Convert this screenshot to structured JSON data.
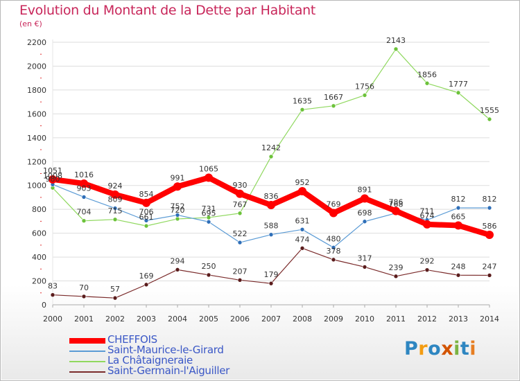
{
  "title": "Evolution du Montant de la Dette par Habitant",
  "subtitle": "(en €)",
  "chart_data": {
    "type": "line",
    "title": "Evolution du Montant de la Dette par Habitant",
    "subtitle": "(en €)",
    "xlabel": "",
    "ylabel": "",
    "categories": [
      "2000",
      "2001",
      "2002",
      "2003",
      "2004",
      "2005",
      "2006",
      "2007",
      "2008",
      "2009",
      "2010",
      "2011",
      "2012",
      "2013",
      "2014"
    ],
    "ylim": [
      0,
      2200
    ],
    "yticks": [
      0,
      200,
      400,
      600,
      800,
      1000,
      1200,
      1400,
      1600,
      1800,
      2000,
      2200
    ],
    "grid": "horizontal",
    "legend_position": "bottom-left",
    "series": [
      {
        "name": "CHEFFOIS",
        "color": "#ff0000",
        "values": [
          1051,
          1016,
          924,
          854,
          991,
          1065,
          930,
          836,
          952,
          769,
          891,
          786,
          674,
          665,
          586
        ]
      },
      {
        "name": "Saint-Maurice-le-Girard",
        "color": "#5b9bd5",
        "values": [
          1008,
          903,
          809,
          706,
          752,
          695,
          522,
          588,
          631,
          480,
          698,
          768,
          711,
          812,
          812
        ]
      },
      {
        "name": "La Châtaigneraie",
        "color": "#8fd85e",
        "values": [
          980,
          704,
          715,
          661,
          720,
          731,
          767,
          1242,
          1635,
          1667,
          1756,
          2143,
          1856,
          1777,
          1555
        ]
      },
      {
        "name": "Saint-Germain-l'Aiguiller",
        "color": "#7a2a2a",
        "values": [
          83,
          70,
          57,
          169,
          294,
          250,
          207,
          179,
          474,
          378,
          317,
          239,
          292,
          248,
          247
        ]
      }
    ]
  },
  "legend": {
    "items": [
      {
        "label": "CHEFFOIS",
        "color": "#ff0000"
      },
      {
        "label": "Saint-Maurice-le-Girard",
        "color": "#5b9bd5"
      },
      {
        "label": "La Châtaigneraie",
        "color": "#8fd85e"
      },
      {
        "label": "Saint-Germain-l'Aiguiller",
        "color": "#7a2a2a"
      }
    ]
  },
  "logo": {
    "text": "Proxiti",
    "letter_colors": [
      "#2e86c1",
      "#f39c12",
      "#2e86c1",
      "#d35400",
      "#7cb342",
      "#2e86c1",
      "#e67e22"
    ]
  }
}
